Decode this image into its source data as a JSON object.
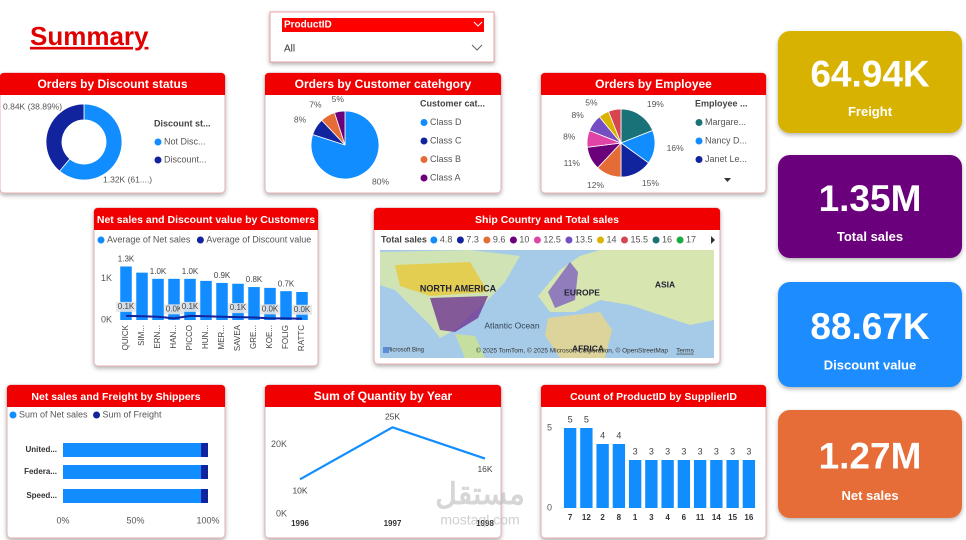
{
  "title": "Summary",
  "slicer": {
    "title": "ProductID",
    "value": "All"
  },
  "kpis": [
    {
      "value": "64.94K",
      "label": "Freight",
      "color": "#d8b200"
    },
    {
      "value": "1.35M",
      "label": "Total sales",
      "color": "#6b007b"
    },
    {
      "value": "88.67K",
      "label": "Discount value",
      "color": "#1a8cff"
    },
    {
      "value": "1.27M",
      "label": "Net sales",
      "color": "#e66c37"
    }
  ],
  "watermark": [
    "مستقل",
    "mostaql.com"
  ],
  "chart_data": [
    {
      "type": "pie",
      "donut": true,
      "title": "Orders by Discount status",
      "legend_title": "Discount st...",
      "categories": [
        "Not Disc...",
        "Discount..."
      ],
      "values": [
        1320,
        840
      ],
      "value_labels": [
        "1.32K (61....)",
        "0.84K (38.89%)"
      ],
      "colors": [
        "#118dff",
        "#12239e"
      ]
    },
    {
      "type": "pie",
      "title": "Orders by Customer catehgory",
      "legend_title": "Customer cat...",
      "categories": [
        "Class D",
        "Class C",
        "Class B",
        "Class A"
      ],
      "values": [
        80,
        8,
        7,
        5
      ],
      "value_labels": [
        "80%",
        "8%",
        "7%",
        "5%"
      ],
      "colors": [
        "#118dff",
        "#12239e",
        "#e66c37",
        "#6b007b"
      ]
    },
    {
      "type": "pie",
      "title": "Orders by Employee",
      "legend_title": "Employee ...",
      "categories": [
        "Margare...",
        "Nancy D...",
        "Janet Le...",
        null,
        null,
        null,
        null,
        null,
        null
      ],
      "values": [
        19,
        16,
        15,
        12,
        11,
        8,
        8,
        5,
        6
      ],
      "value_labels": [
        "19%",
        "16%",
        "15%",
        "12%",
        "11%",
        "8%",
        "8%",
        "5%",
        null
      ],
      "colors": [
        "#197278",
        "#118dff",
        "#12239e",
        "#e66c37",
        "#6b007b",
        "#e044a7",
        "#744ec2",
        "#d9b300",
        "#d64550"
      ]
    },
    {
      "type": "combo",
      "title": "Net sales and Discount value by Customers",
      "categories": [
        "QUICK",
        "SIM...",
        "ERN...",
        "HAN...",
        "PICCO",
        "HUN...",
        "MER...",
        "SAVEA",
        "GRE...",
        "KOE...",
        "FOLIG",
        "RATTC"
      ],
      "series": [
        {
          "name": "Average of Net sales",
          "kind": "bar",
          "color": "#118dff",
          "values": [
            1300,
            1150,
            1000,
            1000,
            1000,
            950,
            900,
            880,
            800,
            780,
            700,
            680
          ],
          "value_labels": [
            "1.3K",
            null,
            "1.0K",
            null,
            "1.0K",
            null,
            "0.9K",
            null,
            "0.8K",
            null,
            "0.7K",
            null
          ]
        },
        {
          "name": "Average of Discount value",
          "kind": "line",
          "color": "#12239e",
          "values": [
            100,
            90,
            80,
            40,
            100,
            90,
            80,
            70,
            60,
            40,
            40,
            30
          ],
          "value_labels": [
            "0.1K",
            null,
            null,
            "0.0K",
            "0.1K",
            null,
            null,
            "0.1K",
            null,
            "0.0K",
            null,
            "0.0K"
          ]
        }
      ],
      "ylim": [
        0,
        1700
      ],
      "yticks": [
        {
          "value": 0,
          "label": "0K"
        },
        {
          "value": 1000,
          "label": "1K"
        }
      ]
    },
    {
      "type": "map",
      "title": "Ship Country and Total sales",
      "legend_title": "Total sales",
      "legend": [
        4.8,
        7.3,
        9.6,
        10,
        12.5,
        13.5,
        14,
        15.5,
        16,
        17
      ],
      "colors": [
        "#118dff",
        "#12239e",
        "#e66c37",
        "#6b007b",
        "#e044a7",
        "#744ec2",
        "#d9b300",
        "#d64550",
        "#197278",
        "#1aab40"
      ],
      "labels": [
        "NORTH AMERICA",
        "EUROPE",
        "ASIA",
        "Atlantic Ocean",
        "AFRICA",
        "Microsoft Bing",
        "© 2025 TomTom, © 2025 Microsoft Corporation, © OpenStreetMap",
        "Terms"
      ]
    },
    {
      "type": "bar",
      "orientation": "horizontal",
      "stacked": "percent",
      "title": "Net sales and Freight by Shippers",
      "categories": [
        "United...",
        "Federa...",
        "Speed..."
      ],
      "series": [
        {
          "name": "Sum of Net sales",
          "color": "#118dff",
          "values": [
            95.2,
            95.2,
            95.2
          ]
        },
        {
          "name": "Sum of Freight",
          "color": "#12239e",
          "values": [
            4.8,
            4.8,
            4.8
          ]
        }
      ],
      "xlim": [
        0,
        100
      ],
      "xticks": [
        {
          "value": 0,
          "label": "0%"
        },
        {
          "value": 50,
          "label": "50%"
        },
        {
          "value": 100,
          "label": "100%"
        }
      ]
    },
    {
      "type": "line",
      "title": "Sum of Quantity by Year",
      "categories": [
        "1996",
        "1997",
        "1998"
      ],
      "values": [
        10000,
        25000,
        16000
      ],
      "value_labels": [
        "10K",
        "25K",
        "16K"
      ],
      "color": "#118dff",
      "ylim": [
        0,
        30000
      ],
      "yticks": [
        {
          "value": 0,
          "label": "0K"
        },
        {
          "value": 20000,
          "label": "20K"
        }
      ]
    },
    {
      "type": "bar",
      "title": "Count of ProductID by SupplierID",
      "categories": [
        "7",
        "12",
        "2",
        "8",
        "1",
        "3",
        "4",
        "6",
        "11",
        "14",
        "15",
        "16"
      ],
      "values": [
        5,
        5,
        4,
        4,
        3,
        3,
        3,
        3,
        3,
        3,
        3,
        3
      ],
      "color": "#118dff",
      "ylim": [
        0,
        5.5
      ],
      "yticks": [
        0,
        5
      ]
    }
  ]
}
